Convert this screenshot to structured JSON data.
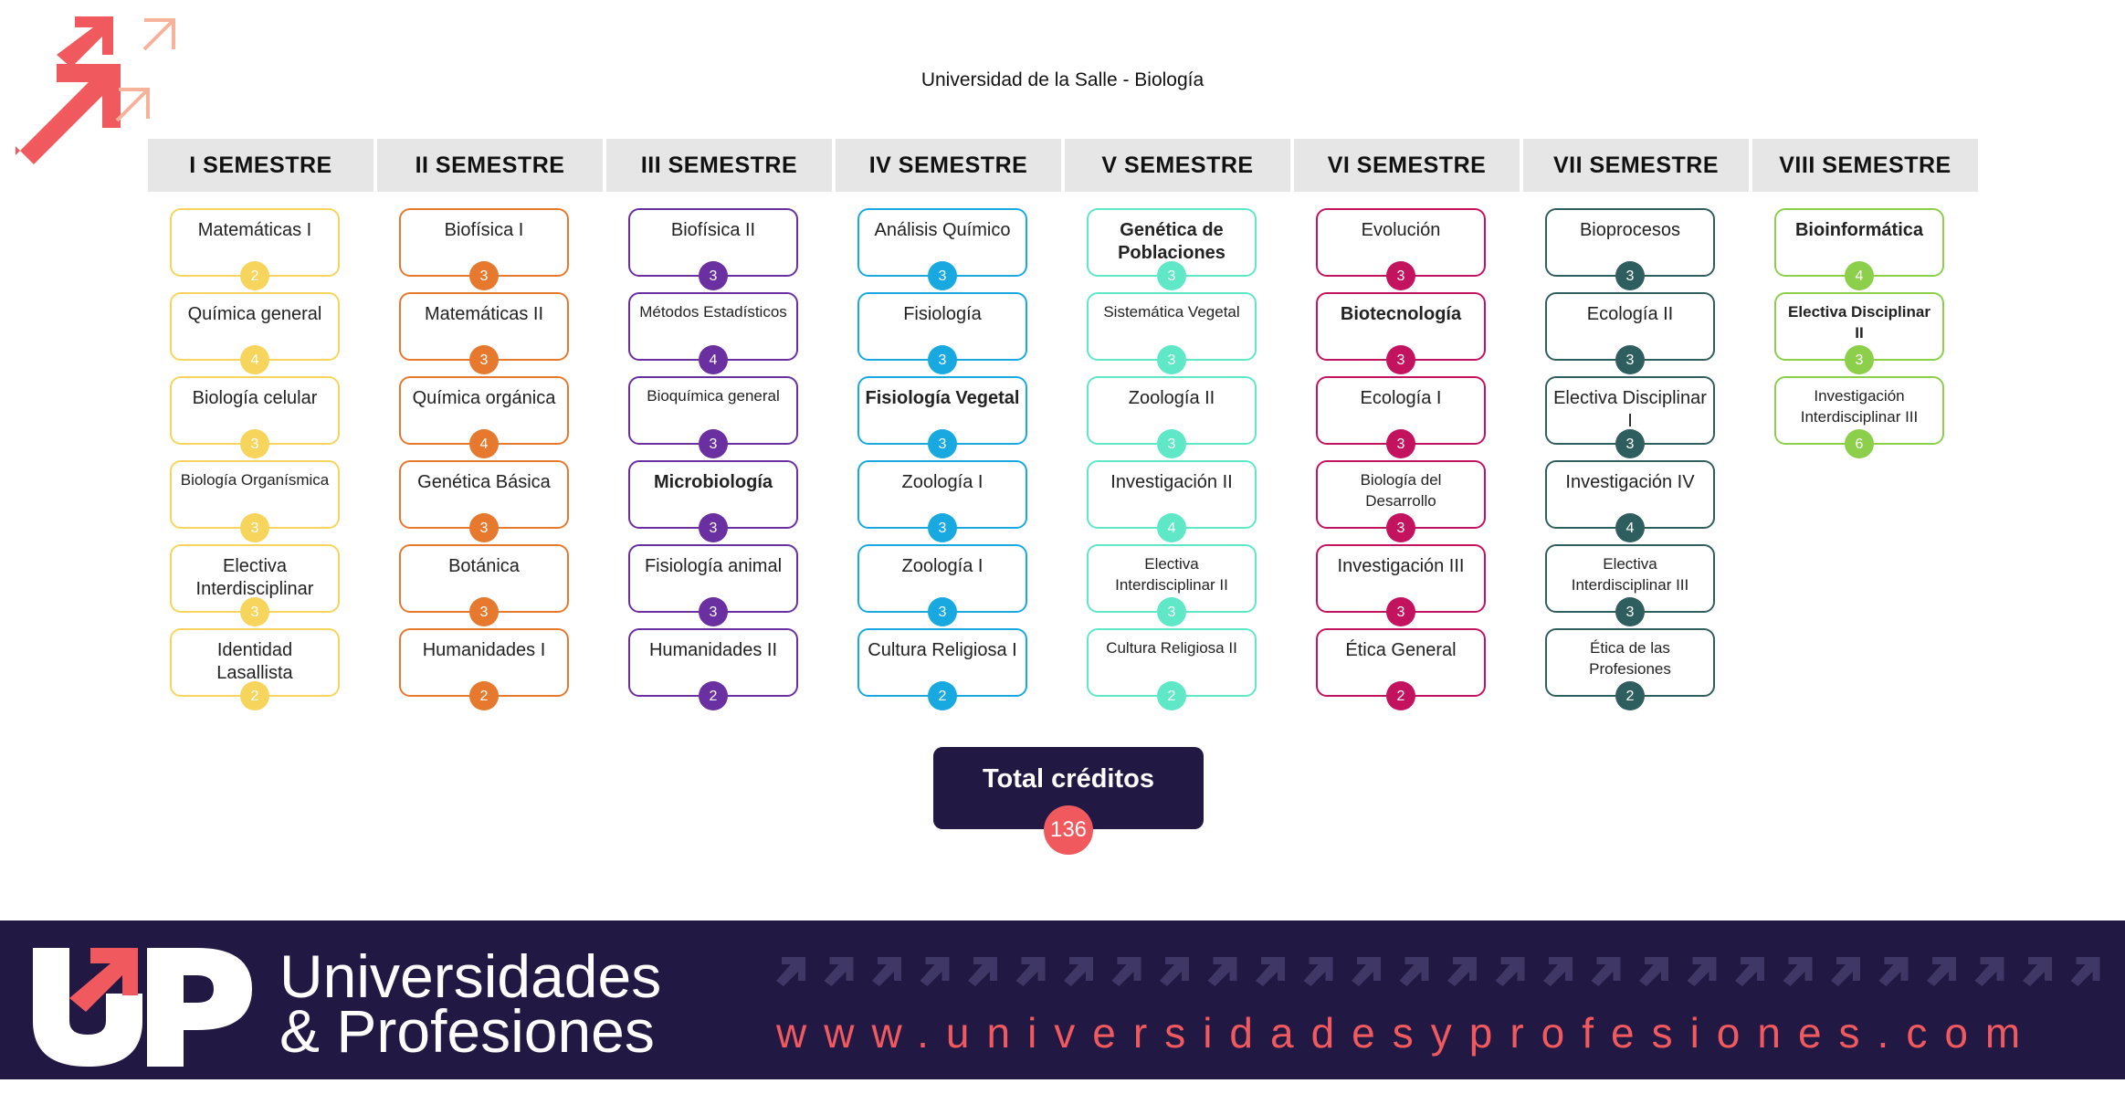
{
  "title": "Universidad de la Salle - Biología",
  "colors": {
    "sem1": "#f7d55c",
    "sem2": "#e6792e",
    "sem3": "#6a2fa0",
    "sem4": "#19a9e1",
    "sem5": "#5fe8c8",
    "sem6": "#c3135f",
    "sem7": "#2f5e5f",
    "sem8": "#8bcf4a",
    "total_box": "#211843",
    "total_badge": "#f05a5f",
    "footer_bg": "#211843",
    "accent": "#f05a5f"
  },
  "semesters": [
    {
      "header": "I SEMESTRE",
      "courses": [
        {
          "name": "Matemáticas I",
          "credits": "2"
        },
        {
          "name": "Química general",
          "credits": "4"
        },
        {
          "name": "Biología celular",
          "credits": "3"
        },
        {
          "name": "Biología Organísmica",
          "credits": "3"
        },
        {
          "name": "Electiva Interdisciplinar",
          "credits": "3"
        },
        {
          "name": "Identidad Lasallista",
          "credits": "2"
        }
      ]
    },
    {
      "header": "II SEMESTRE",
      "courses": [
        {
          "name": "Biofísica I",
          "credits": "3"
        },
        {
          "name": "Matemáticas II",
          "credits": "3"
        },
        {
          "name": "Química orgánica",
          "credits": "4"
        },
        {
          "name": "Genética Básica",
          "credits": "3"
        },
        {
          "name": "Botánica",
          "credits": "3"
        },
        {
          "name": "Humanidades I",
          "credits": "2"
        }
      ]
    },
    {
      "header": "III SEMESTRE",
      "courses": [
        {
          "name": "Biofísica II",
          "credits": "3"
        },
        {
          "name": "Métodos Estadísticos",
          "credits": "4"
        },
        {
          "name": "Bioquímica general",
          "credits": "3"
        },
        {
          "name": "Microbiología",
          "credits": "3"
        },
        {
          "name": "Fisiología animal",
          "credits": "3"
        },
        {
          "name": "Humanidades II",
          "credits": "2"
        }
      ]
    },
    {
      "header": "IV SEMESTRE",
      "courses": [
        {
          "name": "Análisis Químico",
          "credits": "3"
        },
        {
          "name": "Fisiología",
          "credits": "3"
        },
        {
          "name": "Fisiología Vegetal",
          "credits": "3"
        },
        {
          "name": "Zoología I",
          "credits": "3"
        },
        {
          "name": "Zoología I",
          "credits": "3"
        },
        {
          "name": "Cultura Religiosa I",
          "credits": "2"
        }
      ]
    },
    {
      "header": "V SEMESTRE",
      "courses": [
        {
          "name": "Genética de Poblaciones",
          "credits": "3"
        },
        {
          "name": "Sistemática Vegetal",
          "credits": "3"
        },
        {
          "name": "Zoología II",
          "credits": "3"
        },
        {
          "name": "Investigación II",
          "credits": "4"
        },
        {
          "name": "Electiva Interdisciplinar II",
          "credits": "3"
        },
        {
          "name": "Cultura Religiosa II",
          "credits": "2"
        }
      ]
    },
    {
      "header": "VI SEMESTRE",
      "courses": [
        {
          "name": "Evolución",
          "credits": "3"
        },
        {
          "name": "Biotecnología",
          "credits": "3"
        },
        {
          "name": "Ecología I",
          "credits": "3"
        },
        {
          "name": "Biología del Desarrollo",
          "credits": "3"
        },
        {
          "name": "Investigación III",
          "credits": "3"
        },
        {
          "name": "Ética General",
          "credits": "2"
        }
      ]
    },
    {
      "header": "VII SEMESTRE",
      "courses": [
        {
          "name": "Bioprocesos",
          "credits": "3"
        },
        {
          "name": "Ecología II",
          "credits": "3"
        },
        {
          "name": "Electiva Disciplinar I",
          "credits": "3"
        },
        {
          "name": "Investigación IV",
          "credits": "4"
        },
        {
          "name": "Electiva Interdisciplinar III",
          "credits": "3"
        },
        {
          "name": "Ética de las Profesiones",
          "credits": "2"
        }
      ]
    },
    {
      "header": "VIII SEMESTRE",
      "courses": [
        {
          "name": "Bioinformática",
          "credits": "4"
        },
        {
          "name": "Electiva Disciplinar II",
          "credits": "3"
        },
        {
          "name": "Investigación Interdisciplinar III",
          "credits": "6"
        }
      ]
    }
  ],
  "total": {
    "label": "Total créditos",
    "value": "136"
  },
  "footer": {
    "brand_line1": "Universidades",
    "brand_line2": "& Profesiones",
    "website": "www.universidadesyprofesiones.com"
  }
}
